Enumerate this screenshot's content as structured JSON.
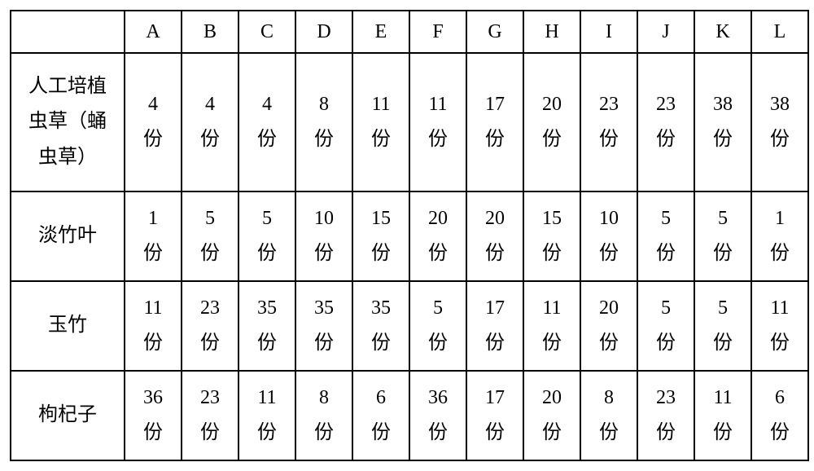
{
  "table": {
    "columns": [
      "A",
      "B",
      "C",
      "D",
      "E",
      "F",
      "G",
      "H",
      "I",
      "J",
      "K",
      "L"
    ],
    "unit": "份",
    "rows": [
      {
        "label_line1": "人工培植",
        "label_line2": "虫草（蛹",
        "label_line3": "虫草）",
        "values": [
          "4",
          "4",
          "4",
          "8",
          "11",
          "11",
          "17",
          "20",
          "23",
          "23",
          "38",
          "38"
        ],
        "tall": true
      },
      {
        "label_line1": "淡竹叶",
        "label_line2": "",
        "label_line3": "",
        "values": [
          "1",
          "5",
          "5",
          "10",
          "15",
          "20",
          "20",
          "15",
          "10",
          "5",
          "5",
          "1"
        ],
        "tall": false
      },
      {
        "label_line1": "玉竹",
        "label_line2": "",
        "label_line3": "",
        "values": [
          "11",
          "23",
          "35",
          "35",
          "35",
          "5",
          "17",
          "11",
          "20",
          "5",
          "5",
          "11"
        ],
        "tall": false
      },
      {
        "label_line1": "枸杞子",
        "label_line2": "",
        "label_line3": "",
        "values": [
          "36",
          "23",
          "11",
          "8",
          "6",
          "36",
          "17",
          "20",
          "8",
          "23",
          "11",
          "6"
        ],
        "tall": false
      }
    ],
    "border_color": "#000000",
    "background_color": "#ffffff",
    "font_family": "SimSun",
    "header_fontsize": 24,
    "cell_fontsize": 24,
    "col_header_width": 140,
    "col_data_width": 70
  }
}
